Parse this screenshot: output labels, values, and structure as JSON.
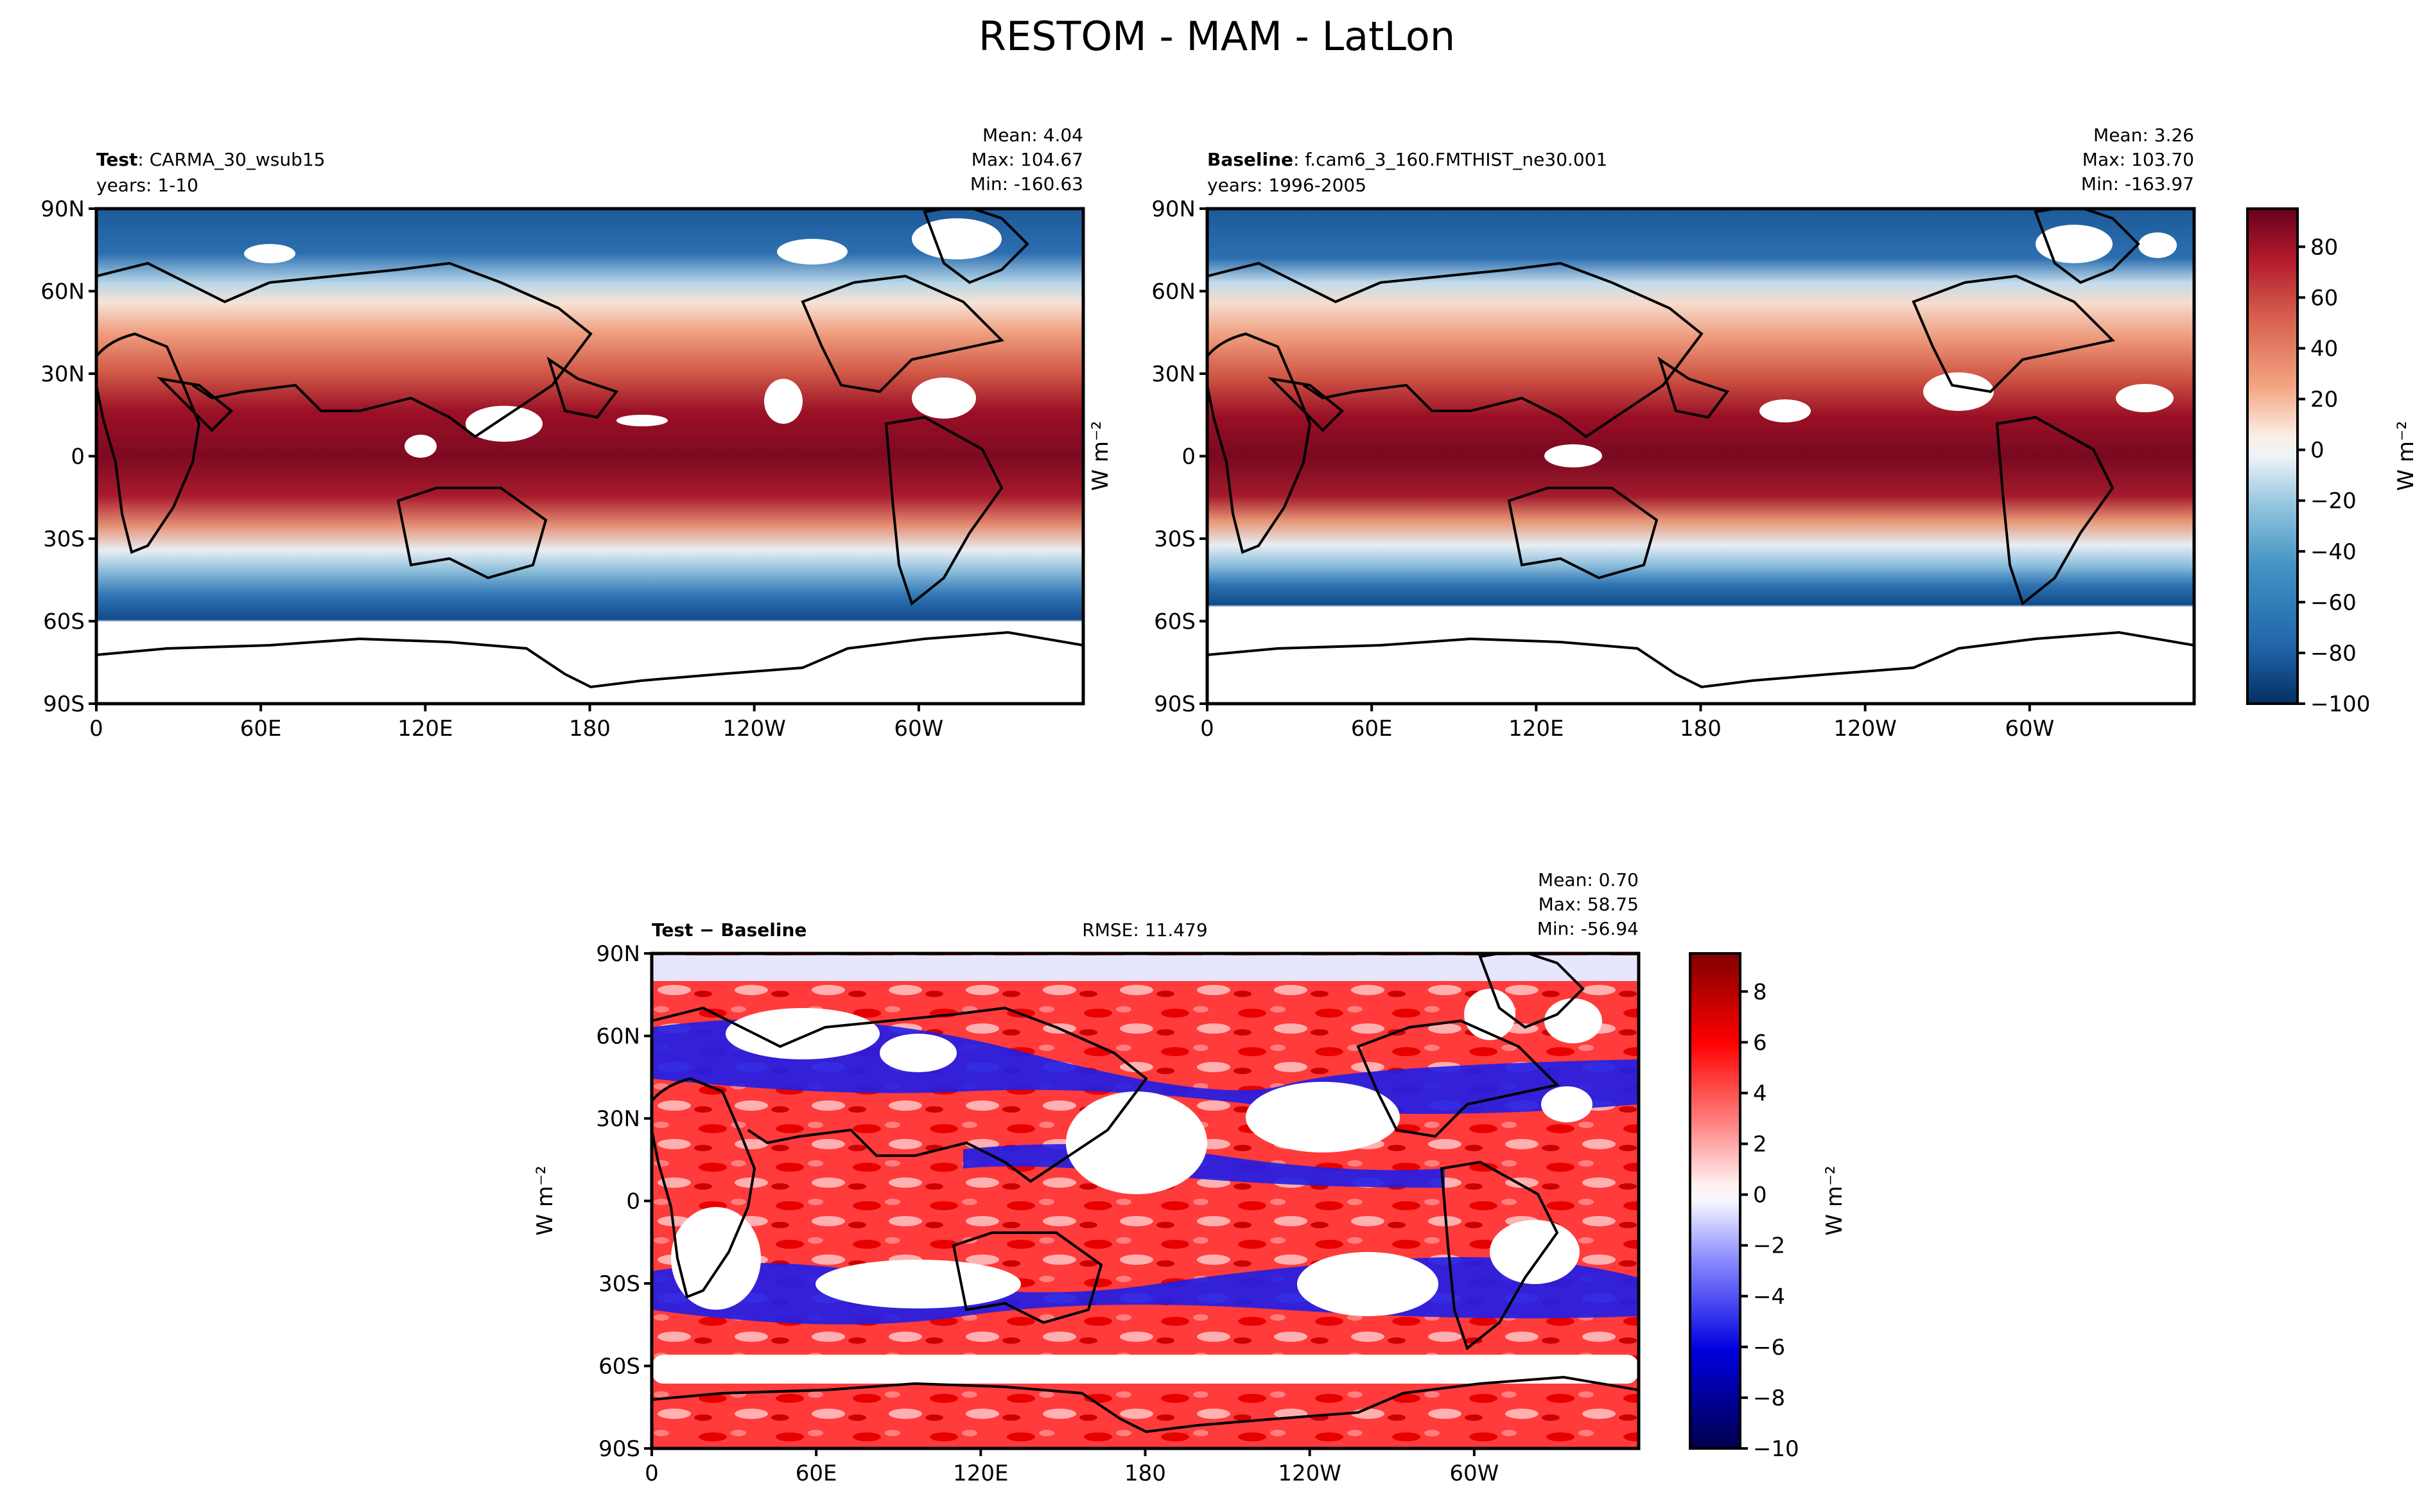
{
  "figure": {
    "title": "RESTOM - MAM - LatLon"
  },
  "panels": [
    {
      "id": "test",
      "label_bold": "Test",
      "label_rest": ": CARMA_30_wsub15",
      "years": "years: 1-10",
      "stats": {
        "mean": "Mean:  4.04",
        "max": "Max: 104.67",
        "min": "Min: -160.63"
      },
      "ylabel": ""
    },
    {
      "id": "baseline",
      "label_bold": "Baseline",
      "label_rest": ": f.cam6_3_160.FMTHIST_ne30.001",
      "years": "years: 1996-2005",
      "stats": {
        "mean": "Mean:  3.26",
        "max": "Max: 103.70",
        "min": "Min: -163.97"
      },
      "ylabel": "W m⁻²"
    },
    {
      "id": "diff",
      "label_bold": "Test − Baseline",
      "label_rest": "",
      "rmse": "RMSE: 11.479",
      "stats": {
        "mean": "Mean:  0.70",
        "max": "Max: 58.75",
        "min": "Min: -56.94"
      },
      "ylabel": "W m⁻²"
    }
  ],
  "colorbars": [
    {
      "id": "main",
      "unit": "W m⁻²",
      "vmin": -100,
      "vmax": 95,
      "ticks": [
        "80",
        "60",
        "40",
        "20",
        "0",
        "−20",
        "−40",
        "−60",
        "−80",
        "−100"
      ],
      "tick_values": [
        80,
        60,
        40,
        20,
        0,
        -20,
        -40,
        -60,
        -80,
        -100
      ]
    },
    {
      "id": "diff",
      "unit": "W m⁻²",
      "vmin": -10,
      "vmax": 9.5,
      "ticks": [
        "8",
        "6",
        "4",
        "2",
        "0",
        "−2",
        "−4",
        "−6",
        "−8",
        "−10"
      ],
      "tick_values": [
        8,
        6,
        4,
        2,
        0,
        -2,
        -4,
        -6,
        -8,
        -10
      ]
    }
  ],
  "axes": {
    "lat_ticks": [
      "90N",
      "60N",
      "30N",
      "0",
      "30S",
      "60S",
      "90S"
    ],
    "lat_values": [
      90,
      60,
      30,
      0,
      -30,
      -60,
      -90
    ],
    "lon_ticks": [
      "0",
      "60E",
      "120E",
      "180",
      "120W",
      "60W"
    ],
    "lon_values": [
      0,
      60,
      120,
      180,
      240,
      300
    ]
  },
  "chart_data": [
    {
      "type": "heatmap",
      "panel": "test",
      "variable": "RESTOM",
      "season": "MAM",
      "xlim": [
        0,
        360
      ],
      "ylim": [
        -90,
        90
      ],
      "colormap": "RdBu_r",
      "stats": {
        "mean": 4.04,
        "max": 104.67,
        "min": -160.63
      }
    },
    {
      "type": "heatmap",
      "panel": "baseline",
      "variable": "RESTOM",
      "season": "MAM",
      "xlim": [
        0,
        360
      ],
      "ylim": [
        -90,
        90
      ],
      "colormap": "RdBu_r",
      "stats": {
        "mean": 3.26,
        "max": 103.7,
        "min": -163.97
      }
    },
    {
      "type": "heatmap",
      "panel": "diff",
      "variable": "RESTOM",
      "season": "MAM",
      "xlim": [
        0,
        360
      ],
      "ylim": [
        -90,
        90
      ],
      "colormap": "seismic",
      "stats": {
        "mean": 0.7,
        "max": 58.75,
        "min": -56.94,
        "rmse": 11.479
      }
    }
  ]
}
